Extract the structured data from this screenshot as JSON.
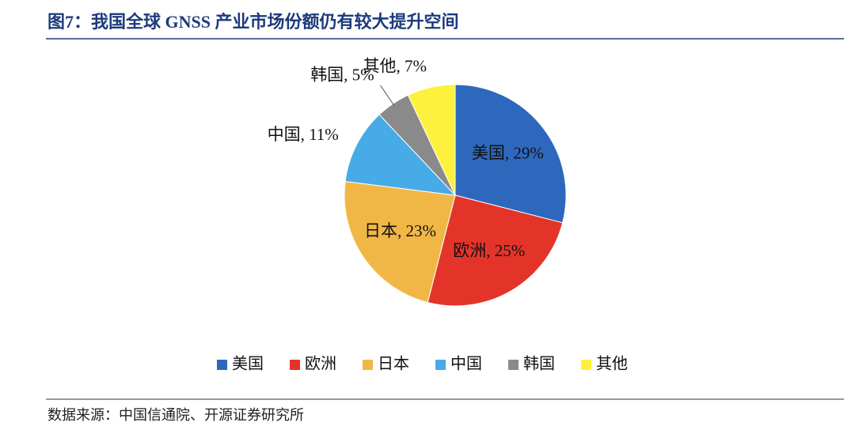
{
  "chart_data": {
    "type": "pie",
    "title": "图7：我国全球 GNSS 产业市场份额仍有较大提升空间",
    "categories": [
      "美国",
      "欧洲",
      "日本",
      "中国",
      "韩国",
      "其他"
    ],
    "values": [
      29,
      25,
      23,
      11,
      5,
      7
    ],
    "value_labels": [
      "美国, 29%",
      "欧洲, 25%",
      "日本, 23%",
      "中国, 11%",
      "韩国, 5%",
      "其他, 7%"
    ],
    "colors": [
      "#2e68bd",
      "#e4342a",
      "#f1b746",
      "#46abe6",
      "#8a8a8a",
      "#fdf13e"
    ],
    "legend": "bottom",
    "source": "数据来源：中国信通院、开源证券研究所"
  }
}
